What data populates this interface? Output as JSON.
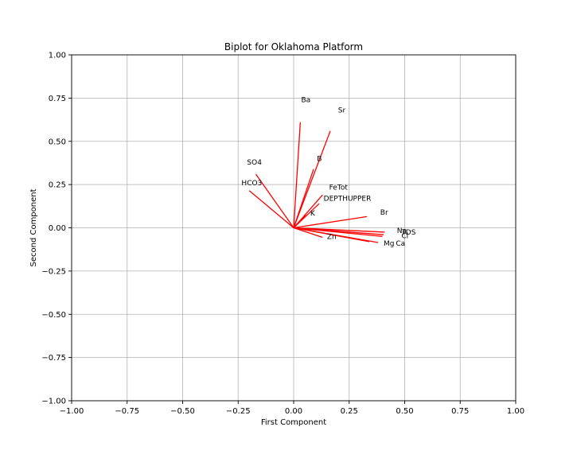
{
  "chart_data": {
    "type": "biplot",
    "title": "Biplot for Oklahoma Platform",
    "xlabel": "First Component",
    "ylabel": "Second Component",
    "xlim": [
      -1.0,
      1.0
    ],
    "ylim": [
      -1.0,
      1.0
    ],
    "xticks": [
      -1.0,
      -0.75,
      -0.5,
      -0.25,
      0.0,
      0.25,
      0.5,
      0.75,
      1.0
    ],
    "yticks": [
      -1.0,
      -0.75,
      -0.5,
      -0.25,
      0.0,
      0.25,
      0.5,
      0.75,
      1.0
    ],
    "xtick_labels": [
      "−1.00",
      "−0.75",
      "−0.50",
      "−0.25",
      "0.00",
      "0.25",
      "0.50",
      "0.75",
      "1.00"
    ],
    "ytick_labels": [
      "−1.00",
      "−0.75",
      "−0.50",
      "−0.25",
      "0.00",
      "0.25",
      "0.50",
      "0.75",
      "1.00"
    ],
    "grid": true,
    "vector_color": "#ff0000",
    "vectors": [
      {
        "name": "Ba",
        "x": 0.03,
        "y": 0.61,
        "label_x": 0.034,
        "label_y": 0.74
      },
      {
        "name": "Sr",
        "x": 0.165,
        "y": 0.56,
        "label_x": 0.2,
        "label_y": 0.68
      },
      {
        "name": "B",
        "x": 0.09,
        "y": 0.34,
        "label_x": 0.105,
        "label_y": 0.4
      },
      {
        "name": "SO4",
        "x": -0.17,
        "y": 0.31,
        "label_x": -0.21,
        "label_y": 0.38
      },
      {
        "name": "HCO3",
        "x": -0.2,
        "y": 0.215,
        "label_x": -0.235,
        "label_y": 0.26
      },
      {
        "name": "FeTot",
        "x": 0.13,
        "y": 0.19,
        "label_x": 0.16,
        "label_y": 0.235
      },
      {
        "name": "DEPTHUPPER",
        "x": 0.115,
        "y": 0.14,
        "label_x": 0.135,
        "label_y": 0.17
      },
      {
        "name": "K",
        "x": 0.055,
        "y": 0.075,
        "label_x": 0.075,
        "label_y": 0.085
      },
      {
        "name": "Br",
        "x": 0.33,
        "y": 0.065,
        "label_x": 0.39,
        "label_y": 0.09
      },
      {
        "name": "Na",
        "x": 0.41,
        "y": -0.025,
        "label_x": 0.465,
        "label_y": -0.015
      },
      {
        "name": "TDS",
        "x": 0.405,
        "y": -0.04,
        "label_x": 0.485,
        "label_y": -0.025
      },
      {
        "name": "Cl",
        "x": 0.4,
        "y": -0.05,
        "label_x": 0.485,
        "label_y": -0.045
      },
      {
        "name": "Mg",
        "x": 0.38,
        "y": -0.085,
        "label_x": 0.405,
        "label_y": -0.09
      },
      {
        "name": "Ca",
        "x": 0.34,
        "y": -0.08,
        "label_x": 0.46,
        "label_y": -0.09
      },
      {
        "name": "Zn",
        "x": 0.13,
        "y": -0.055,
        "label_x": 0.15,
        "label_y": -0.05
      }
    ]
  }
}
